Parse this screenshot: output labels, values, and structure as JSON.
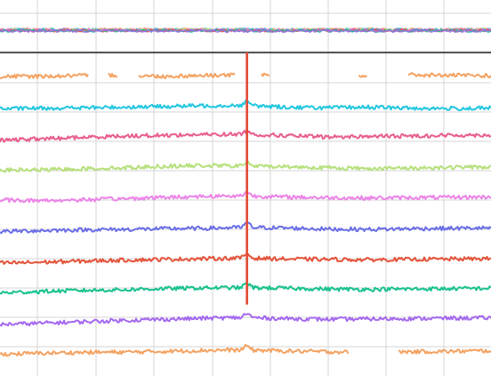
{
  "chart_data": {
    "type": "line",
    "title": "",
    "xlabel": "",
    "ylabel": "",
    "grid": true,
    "legend": "none",
    "colors": {
      "background": "#ffffff",
      "grid": "#d4d4d4",
      "separator": "#000000",
      "marker": "#e34a33"
    },
    "overview": {
      "series_colors": [
        "#f4a261",
        "#22c7e0",
        "#e85d8f",
        "#b5e07a",
        "#ec83e8",
        "#6a6ee6",
        "#e4533a",
        "#17c28e",
        "#a468ef"
      ]
    },
    "marker": {
      "x": 0.503,
      "y_from": 0.0,
      "y_to": 0.9
    },
    "series": [
      {
        "color": "#f4a261",
        "values": [
          0.2,
          0.21,
          0.24,
          0.28,
          0.2,
          0.26,
          0.3,
          0.22,
          0.2,
          0.25,
          0.29,
          0.26,
          0.24
        ],
        "gaps": [
          [
            0.18,
            0.22
          ],
          [
            0.24,
            0.28
          ],
          [
            0.48,
            0.53
          ],
          [
            0.55,
            0.73
          ],
          [
            0.75,
            0.83
          ]
        ]
      },
      {
        "color": "#22c7e0",
        "values": [
          0.1,
          0.14,
          0.16,
          0.2,
          0.24,
          0.28,
          0.3,
          0.2,
          0.16,
          0.2,
          0.14,
          0.12,
          0.14
        ]
      },
      {
        "color": "#e85d8f",
        "values": [
          0.05,
          0.14,
          0.22,
          0.3,
          0.34,
          0.38,
          0.4,
          0.32,
          0.24,
          0.28,
          0.3,
          0.34,
          0.36
        ]
      },
      {
        "color": "#b5e07a",
        "values": [
          0.1,
          0.12,
          0.18,
          0.24,
          0.32,
          0.36,
          0.34,
          0.3,
          0.24,
          0.2,
          0.22,
          0.26,
          0.28
        ]
      },
      {
        "color": "#ec83e8",
        "values": [
          0.15,
          0.12,
          0.16,
          0.22,
          0.3,
          0.36,
          0.38,
          0.32,
          0.28,
          0.26,
          0.28,
          0.3,
          0.32
        ]
      },
      {
        "color": "#6a6ee6",
        "values": [
          0.1,
          0.16,
          0.2,
          0.22,
          0.26,
          0.28,
          0.34,
          0.3,
          0.24,
          0.22,
          0.26,
          0.28,
          0.3
        ]
      },
      {
        "color": "#e4533a",
        "values": [
          0.05,
          0.1,
          0.16,
          0.22,
          0.26,
          0.3,
          0.34,
          0.28,
          0.26,
          0.24,
          0.26,
          0.28,
          0.3
        ]
      },
      {
        "color": "#17c28e",
        "values": [
          0.1,
          0.18,
          0.24,
          0.28,
          0.34,
          0.38,
          0.4,
          0.36,
          0.32,
          0.3,
          0.32,
          0.34,
          0.36
        ]
      },
      {
        "color": "#a468ef",
        "values": [
          0.05,
          0.12,
          0.2,
          0.28,
          0.34,
          0.4,
          0.44,
          0.38,
          0.34,
          0.36,
          0.38,
          0.4,
          0.42
        ]
      },
      {
        "color": "#f4a261",
        "values": [
          0.1,
          0.16,
          0.2,
          0.22,
          0.26,
          0.32,
          0.34,
          0.28,
          0.24,
          0.22,
          0.24,
          0.26,
          0.3
        ],
        "gaps": [
          [
            0.71,
            0.81
          ]
        ]
      }
    ]
  }
}
